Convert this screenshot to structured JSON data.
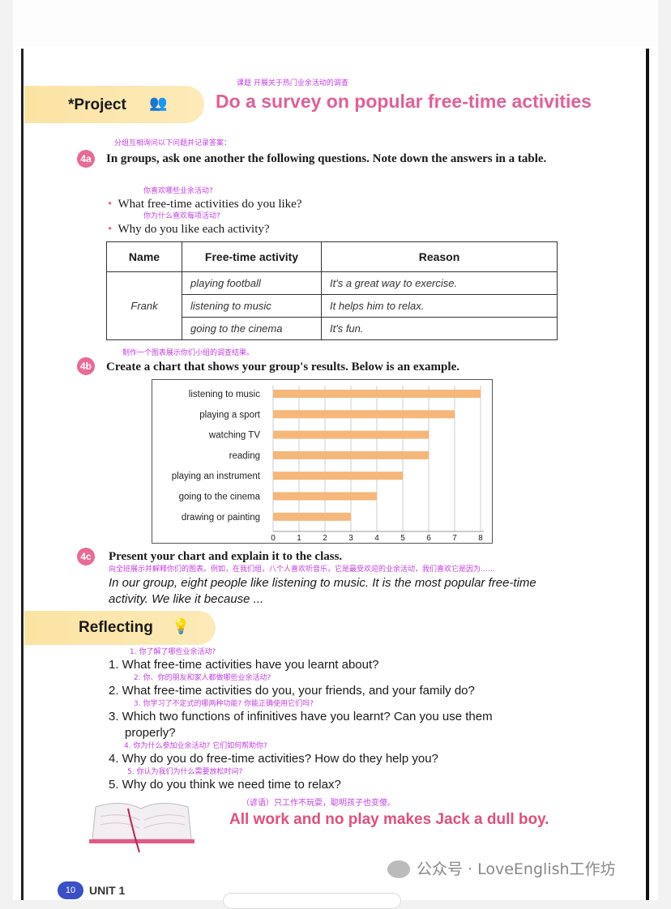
{
  "project": {
    "label": "*Project",
    "title": "Do a survey on popular free-time activities",
    "title_cn": "课题 开展关于热门业余活动的调查"
  },
  "s4a": {
    "badge": "4a",
    "cn": "分组互相询问以下问题并记录答案：",
    "text": "In groups, ask one another the following questions. Note down the answers in a table.",
    "bullets": [
      {
        "cn": "你喜欢哪些业余活动?",
        "text": "What free-time activities do you like?"
      },
      {
        "cn": "你为什么喜欢每项活动?",
        "text": "Why do you like each activity?"
      }
    ]
  },
  "table": {
    "headers": [
      "Name",
      "Free-time activity",
      "Reason"
    ],
    "name": "Frank",
    "rows": [
      [
        "playing football",
        "It's a great way to exercise."
      ],
      [
        "listening to music",
        "It helps him to relax."
      ],
      [
        "going to the cinema",
        "It's fun."
      ]
    ]
  },
  "s4b": {
    "badge": "4b",
    "cn": "制作一个图表展示你们小组的调查结果。",
    "text": "Create a chart that shows your group's results. Below is an example."
  },
  "chart_data": {
    "type": "bar",
    "orientation": "horizontal",
    "categories": [
      "listening to music",
      "playing a sport",
      "watching TV",
      "reading",
      "playing an instrument",
      "going to the cinema",
      "drawing or painting"
    ],
    "values": [
      8,
      7,
      6,
      6,
      5,
      4,
      3
    ],
    "xlim": [
      0,
      8
    ],
    "xticks": [
      "0",
      "1",
      "2",
      "3",
      "4",
      "5",
      "6",
      "7",
      "8"
    ],
    "grid": true,
    "bar_color": "#f5b77a"
  },
  "s4c": {
    "badge": "4c",
    "text": "Present your chart and explain it to the class.",
    "cn": "向全班展示并解释你们的图表。例如，在我们组，八个人喜欢听音乐，它是最受欢迎的业余活动，我们喜欢它是因为……",
    "example1": "In our group, eight people like listening to music. It is the most popular free-time",
    "example2": "activity. We like it because ..."
  },
  "reflecting": {
    "label": "Reflecting",
    "items": [
      {
        "cn": "1. 你了解了哪些业余活动?",
        "text": "1.  What free-time activities have you learnt about?"
      },
      {
        "cn": "2. 你、你的朋友和家人都做哪些业余活动?",
        "text": "2.  What free-time activities do you, your friends, and your family do?"
      },
      {
        "cn": "3. 你学习了不定式的哪两种功能? 你能正确使用它们吗?",
        "text": "3.  Which two functions of infinitives have you learnt? Can you use them",
        "text2": "properly?"
      },
      {
        "cn": "4. 你为什么参加业余活动? 它们如何帮助你?",
        "text": "4.  Why do you do free-time activities? How do they help you?"
      },
      {
        "cn": "5. 你认为我们为什么需要放松时间?",
        "text": "5.  Why do you think we need time to relax?"
      }
    ]
  },
  "proverb": {
    "cn": "（谚语）只工作不玩耍，聪明孩子也变傻。",
    "text": "All work and no play makes Jack a dull boy."
  },
  "footer": {
    "page": "10",
    "unit": "UNIT 1",
    "watermark": "公众号 · LoveEnglish工作坊"
  },
  "colors": {
    "banner": "#fbe3a3",
    "title": "#e0609a",
    "annotation": "#c040e0",
    "badge": "#e86b94",
    "page_badge": "#3a4fc8"
  }
}
